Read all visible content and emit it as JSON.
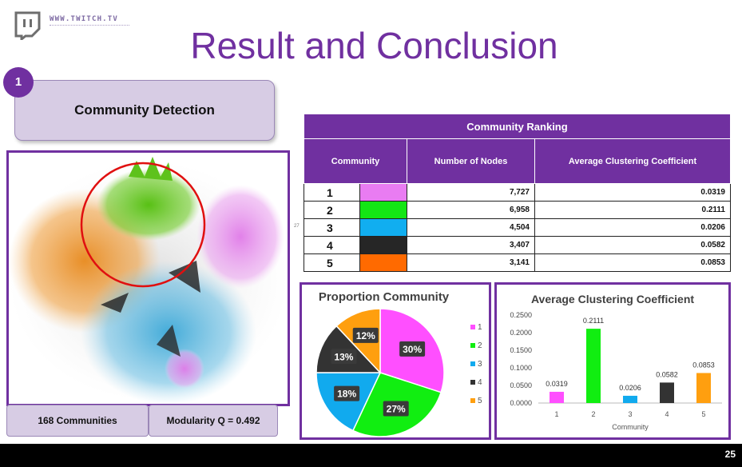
{
  "header": {
    "logo_url": "WWW.TWITCH.TV",
    "title": "Result and Conclusion"
  },
  "section": {
    "number": "1",
    "label": "Community Detection"
  },
  "network": {
    "communities_label": "168 Communities",
    "modularity_label": "Modularity Q = 0.492",
    "small_note": "27"
  },
  "table": {
    "title": "Community Ranking",
    "headers": [
      "Community",
      "Number  of Nodes",
      "Average Clustering Coefficient"
    ],
    "rows": [
      {
        "community": "1",
        "color": "#e97cf2",
        "nodes": "7,727",
        "coef": "0.0319"
      },
      {
        "community": "2",
        "color": "#14e614",
        "nodes": "6,958",
        "coef": "0.2111"
      },
      {
        "community": "3",
        "color": "#11aef0",
        "nodes": "4,504",
        "coef": "0.0206"
      },
      {
        "community": "4",
        "color": "#262626",
        "nodes": "3,407",
        "coef": "0.0582"
      },
      {
        "community": "5",
        "color": "#ff6a00",
        "nodes": "3,141",
        "coef": "0.0853"
      }
    ]
  },
  "chart_data": [
    {
      "type": "pie",
      "title": "Proportion Community",
      "categories": [
        "1",
        "2",
        "3",
        "4",
        "5"
      ],
      "values": [
        30,
        27,
        18,
        13,
        12
      ],
      "labels": [
        "30%",
        "27%",
        "18%",
        "13%",
        "12%"
      ],
      "colors": [
        "#ff4fff",
        "#11ee11",
        "#11aaee",
        "#333333",
        "#ff9f0f"
      ],
      "legend": "right"
    },
    {
      "type": "bar",
      "title": "Average Clustering Coefficient",
      "categories": [
        "1",
        "2",
        "3",
        "4",
        "5"
      ],
      "values": [
        0.0319,
        0.2111,
        0.0206,
        0.0582,
        0.0853
      ],
      "labels": [
        "0.0319",
        "0.2111",
        "0.0206",
        "0.0582",
        "0.0853"
      ],
      "colors": [
        "#ff4fff",
        "#11ee11",
        "#11aaee",
        "#333333",
        "#ff9f0f"
      ],
      "xlabel": "Community",
      "ylabel": "",
      "ylim": [
        0,
        0.25
      ],
      "yticks": [
        "0.0000",
        "0.0500",
        "0.1000",
        "0.1500",
        "0.2000",
        "0.2500"
      ],
      "grid": false
    }
  ],
  "footer": {
    "page_number": "25"
  }
}
